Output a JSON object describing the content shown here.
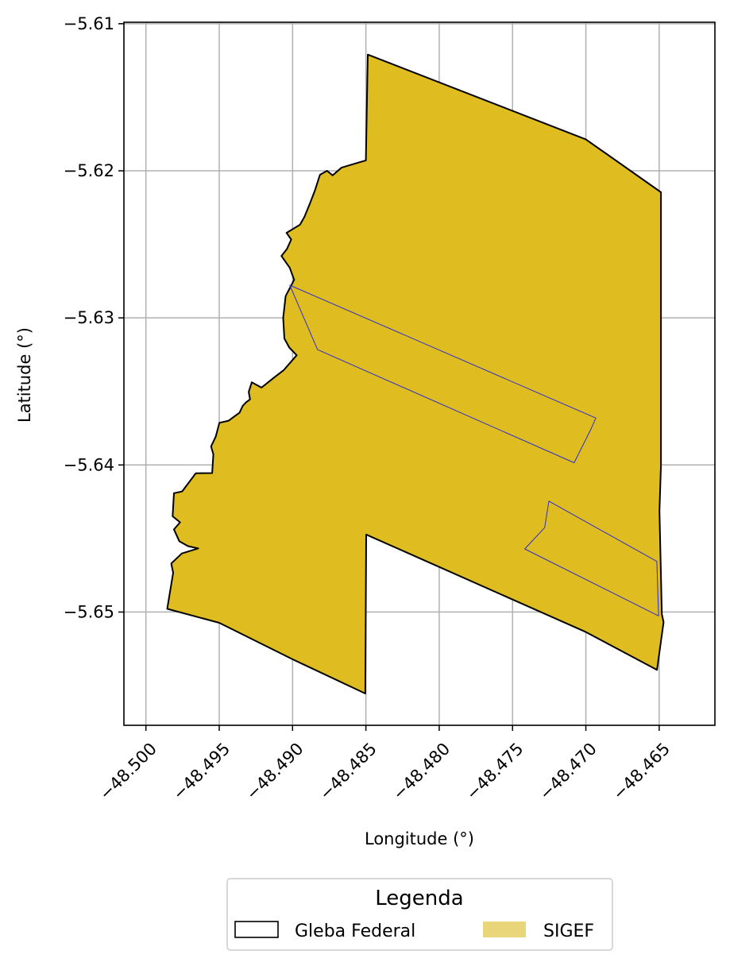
{
  "chart_data": {
    "type": "map",
    "xlabel": "Longitude (°)",
    "ylabel": "Latitude (°)",
    "xlim": [
      -48.5015,
      -48.4612
    ],
    "ylim": [
      -5.6577,
      -5.6099
    ],
    "grid": true,
    "x_ticks": [
      -48.5,
      -48.495,
      -48.49,
      -48.485,
      -48.48,
      -48.475,
      -48.47,
      -48.465
    ],
    "x_tick_labels": [
      "−48.500",
      "−48.495",
      "−48.490",
      "−48.485",
      "−48.480",
      "−48.475",
      "−48.470",
      "−48.465"
    ],
    "y_ticks": [
      -5.61,
      -5.62,
      -5.63,
      -5.64,
      -5.65
    ],
    "y_tick_labels": [
      "−5.61",
      "−5.62",
      "−5.63",
      "−5.64",
      "−5.65"
    ],
    "legend": {
      "title": "Legenda",
      "placement": "bottom-center, below axes",
      "entries": [
        {
          "label": "Gleba Federal",
          "style": "outline",
          "edgecolor": "#000000"
        },
        {
          "label": "SIGEF",
          "style": "fill",
          "facecolor": "#e9d57a"
        }
      ]
    },
    "layers": [
      {
        "name": "gleba",
        "fill": "#dfbc1f",
        "stroke": "#000000",
        "coordinates": [
          [
            -48.48487,
            -5.6121
          ],
          [
            -48.47,
            -5.61786
          ],
          [
            -48.46488,
            -5.62146
          ],
          [
            -48.46488,
            -5.64
          ],
          [
            -48.46498,
            -5.64312
          ],
          [
            -48.46482,
            -5.65014
          ],
          [
            -48.4647,
            -5.65069
          ],
          [
            -48.46515,
            -5.65393
          ],
          [
            -48.47,
            -5.65136
          ],
          [
            -48.48498,
            -5.64473
          ],
          [
            -48.48504,
            -5.65554
          ],
          [
            -48.49,
            -5.65321
          ],
          [
            -48.495,
            -5.65073
          ],
          [
            -48.49855,
            -5.64978
          ],
          [
            -48.49814,
            -5.64733
          ],
          [
            -48.49827,
            -5.6467
          ],
          [
            -48.49755,
            -5.64602
          ],
          [
            -48.49643,
            -5.64567
          ],
          [
            -48.49713,
            -5.64552
          ],
          [
            -48.49772,
            -5.64519
          ],
          [
            -48.49809,
            -5.64438
          ],
          [
            -48.49767,
            -5.6439
          ],
          [
            -48.49818,
            -5.64349
          ],
          [
            -48.49809,
            -5.64192
          ],
          [
            -48.49753,
            -5.6418
          ],
          [
            -48.4966,
            -5.64056
          ],
          [
            -48.49548,
            -5.64055
          ],
          [
            -48.4954,
            -5.63927
          ],
          [
            -48.49556,
            -5.63874
          ],
          [
            -48.49524,
            -5.63807
          ],
          [
            -48.49499,
            -5.63713
          ],
          [
            -48.49436,
            -5.63699
          ],
          [
            -48.49392,
            -5.63667
          ],
          [
            -48.49362,
            -5.63645
          ],
          [
            -48.4934,
            -5.63599
          ],
          [
            -48.49317,
            -5.63574
          ],
          [
            -48.4929,
            -5.63554
          ],
          [
            -48.49299,
            -5.63503
          ],
          [
            -48.49278,
            -5.63438
          ],
          [
            -48.49212,
            -5.63474
          ],
          [
            -48.49123,
            -5.63403
          ],
          [
            -48.49061,
            -5.63356
          ],
          [
            -48.48972,
            -5.63254
          ],
          [
            -48.49022,
            -5.63202
          ],
          [
            -48.49056,
            -5.6314
          ],
          [
            -48.49064,
            -5.63
          ],
          [
            -48.49047,
            -5.62852
          ],
          [
            -48.48989,
            -5.62741
          ],
          [
            -48.49019,
            -5.6266
          ],
          [
            -48.49076,
            -5.62579
          ],
          [
            -48.49038,
            -5.62531
          ],
          [
            -48.49009,
            -5.62467
          ],
          [
            -48.49041,
            -5.62422
          ],
          [
            -48.48949,
            -5.62366
          ],
          [
            -48.48919,
            -5.62313
          ],
          [
            -48.48883,
            -5.62226
          ],
          [
            -48.48846,
            -5.6213
          ],
          [
            -48.48813,
            -5.62027
          ],
          [
            -48.48765,
            -5.62
          ],
          [
            -48.48727,
            -5.62031
          ],
          [
            -48.48667,
            -5.61979
          ],
          [
            -48.48561,
            -5.61947
          ],
          [
            -48.485,
            -5.61929
          ],
          [
            -48.48487,
            -5.6121
          ]
        ]
      },
      {
        "name": "sigef-1",
        "fill": "none",
        "stroke": "#2d2ecf",
        "coordinates": [
          [
            -48.49019,
            -5.62778
          ],
          [
            -48.46932,
            -5.63681
          ],
          [
            -48.46967,
            -5.6376
          ],
          [
            -48.4708,
            -5.63985
          ],
          [
            -48.4883,
            -5.63216
          ],
          [
            -48.49019,
            -5.62778
          ]
        ]
      },
      {
        "name": "sigef-2",
        "fill": "none",
        "stroke": "#2d2ecf",
        "coordinates": [
          [
            -48.47252,
            -5.64246
          ],
          [
            -48.46516,
            -5.64656
          ],
          [
            -48.46504,
            -5.65026
          ],
          [
            -48.47417,
            -5.64571
          ],
          [
            -48.47281,
            -5.64426
          ],
          [
            -48.47252,
            -5.64246
          ]
        ]
      }
    ]
  }
}
